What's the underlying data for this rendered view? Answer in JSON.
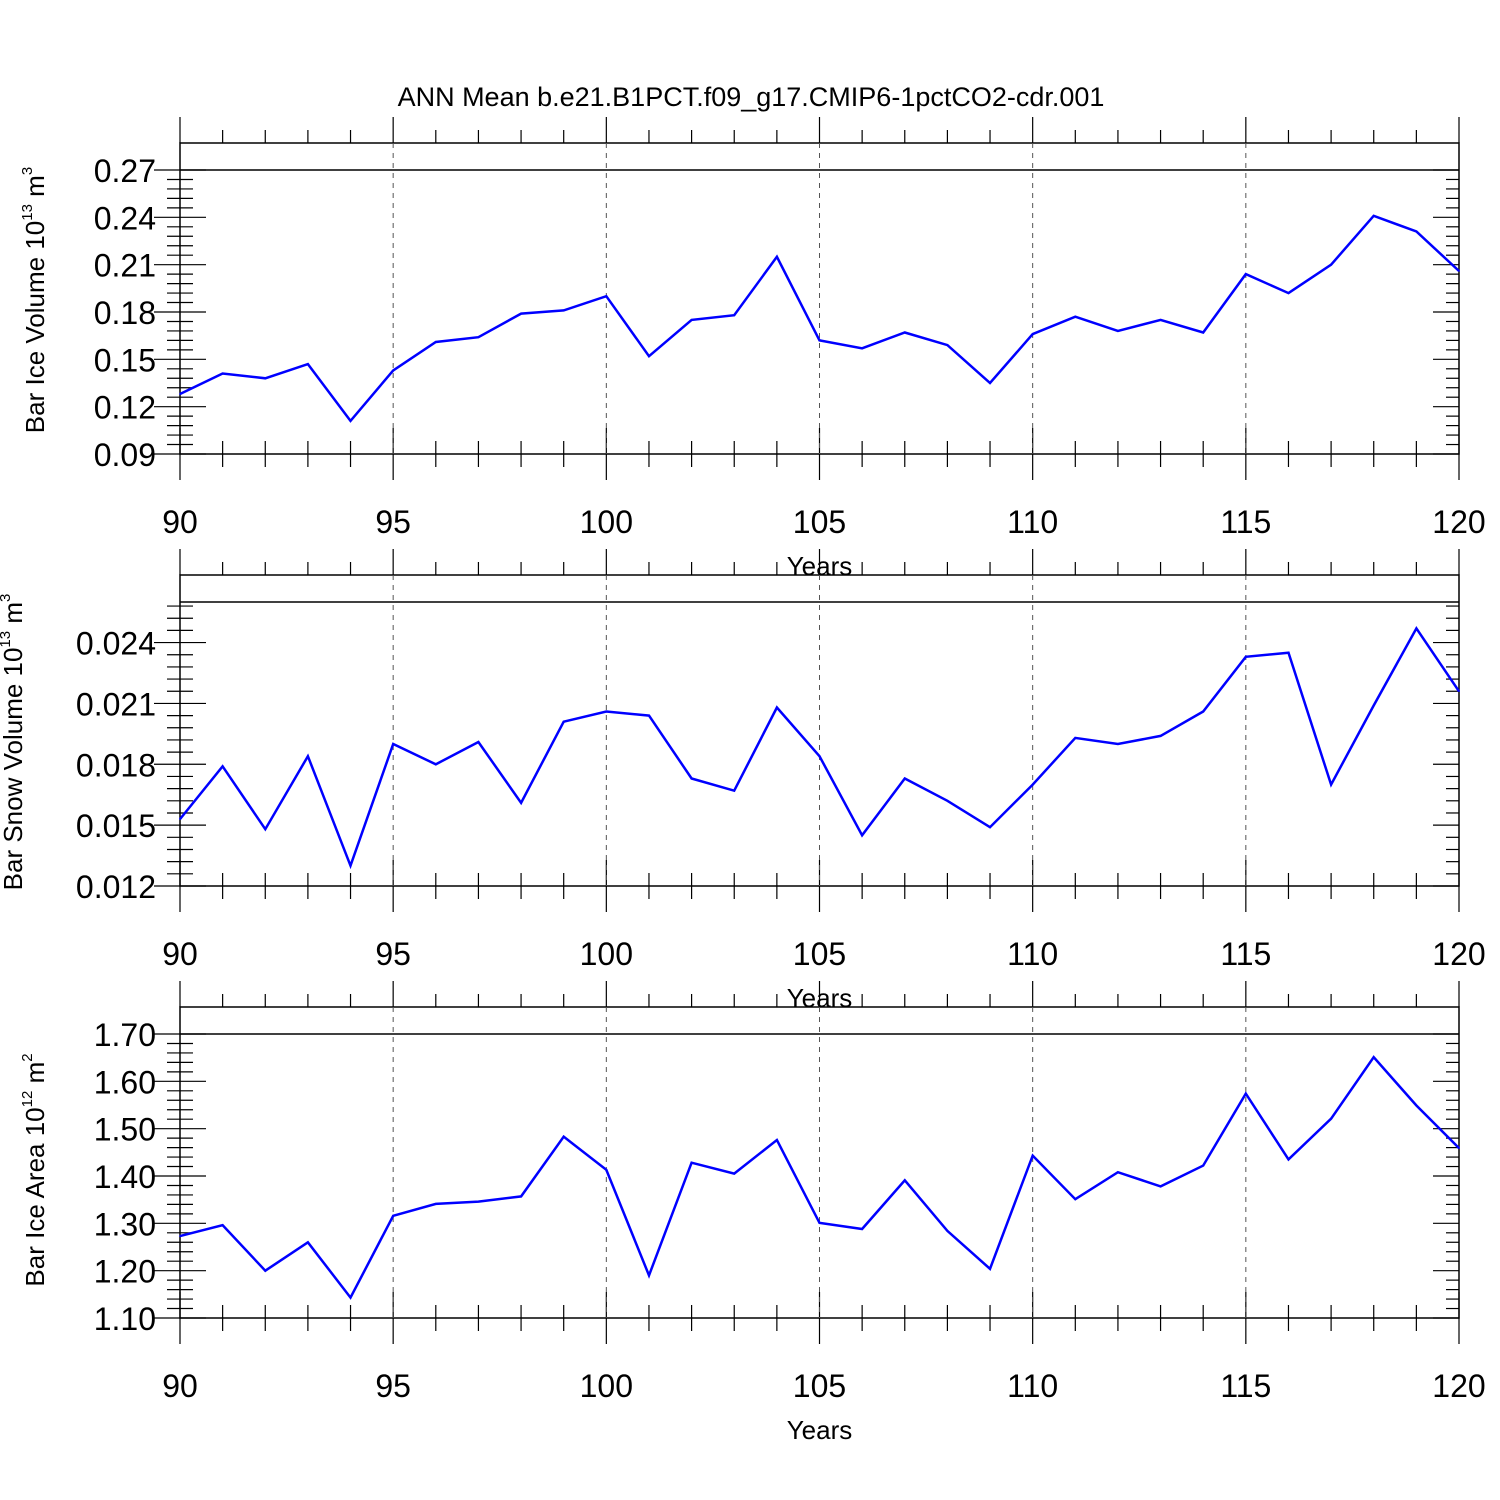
{
  "page": {
    "title": "ANN Mean b.e21.B1PCT.f09_g17.CMIP6-1pctCO2-cdr.001"
  },
  "colors": {
    "series_line": "#0000ff",
    "axis": "#000000",
    "grid": "#555555"
  },
  "chart_data": [
    {
      "type": "line",
      "xlabel": "Years",
      "ylabel": "Bar Ice Volume 10",
      "ylabel_exponent": "13",
      "ylabel_unit": " m",
      "ylabel_unit_exponent": "3",
      "x": [
        90,
        91,
        92,
        93,
        94,
        95,
        96,
        97,
        98,
        99,
        100,
        101,
        102,
        103,
        104,
        105,
        106,
        107,
        108,
        109,
        110,
        111,
        112,
        113,
        114,
        115,
        116,
        117,
        118,
        119,
        120
      ],
      "values": [
        0.128,
        0.141,
        0.138,
        0.147,
        0.111,
        0.143,
        0.161,
        0.164,
        0.179,
        0.181,
        0.19,
        0.152,
        0.175,
        0.178,
        0.215,
        0.162,
        0.157,
        0.167,
        0.159,
        0.135,
        0.166,
        0.177,
        0.168,
        0.175,
        0.167,
        0.204,
        0.192,
        0.21,
        0.241,
        0.231,
        0.206
      ],
      "xlim": [
        90,
        120
      ],
      "ylim": [
        0.09,
        0.27
      ],
      "xticks": [
        "90",
        "95",
        "100",
        "105",
        "110",
        "115",
        "120"
      ],
      "yticks": [
        "0.09",
        "0.12",
        "0.15",
        "0.18",
        "0.21",
        "0.24",
        "0.27"
      ],
      "grid": "vertical dashed at major x ticks"
    },
    {
      "type": "line",
      "xlabel": "Years",
      "ylabel": "Bar Snow Volume 10",
      "ylabel_exponent": "13",
      "ylabel_unit": " m",
      "ylabel_unit_exponent": "3",
      "x": [
        90,
        91,
        92,
        93,
        94,
        95,
        96,
        97,
        98,
        99,
        100,
        101,
        102,
        103,
        104,
        105,
        106,
        107,
        108,
        109,
        110,
        111,
        112,
        113,
        114,
        115,
        116,
        117,
        118,
        119,
        120
      ],
      "values": [
        0.0153,
        0.0179,
        0.0148,
        0.0184,
        0.013,
        0.019,
        0.018,
        0.0191,
        0.0161,
        0.0201,
        0.0206,
        0.0204,
        0.0173,
        0.0167,
        0.0208,
        0.0184,
        0.0145,
        0.0173,
        0.0162,
        0.0149,
        0.017,
        0.0193,
        0.019,
        0.0194,
        0.0206,
        0.0233,
        0.0235,
        0.017,
        0.0209,
        0.0247,
        0.0216
      ],
      "xlim": [
        90,
        120
      ],
      "ylim": [
        0.012,
        0.026
      ],
      "xticks": [
        "90",
        "95",
        "100",
        "105",
        "110",
        "115",
        "120"
      ],
      "yticks": [
        "0.012",
        "0.015",
        "0.018",
        "0.021",
        "0.024"
      ],
      "grid": "vertical dashed at major x ticks"
    },
    {
      "type": "line",
      "xlabel": "Years",
      "ylabel": "Bar Ice Area 10",
      "ylabel_exponent": "12",
      "ylabel_unit": " m",
      "ylabel_unit_exponent": "2",
      "x": [
        90,
        91,
        92,
        93,
        94,
        95,
        96,
        97,
        98,
        99,
        100,
        101,
        102,
        103,
        104,
        105,
        106,
        107,
        108,
        109,
        110,
        111,
        112,
        113,
        114,
        115,
        116,
        117,
        118,
        119,
        120
      ],
      "values": [
        1.273,
        1.296,
        1.2,
        1.26,
        1.143,
        1.316,
        1.341,
        1.346,
        1.357,
        1.483,
        1.413,
        1.19,
        1.428,
        1.405,
        1.476,
        1.301,
        1.288,
        1.391,
        1.284,
        1.204,
        1.443,
        1.351,
        1.408,
        1.378,
        1.422,
        1.574,
        1.435,
        1.521,
        1.651,
        1.549,
        1.459
      ],
      "xlim": [
        90,
        120
      ],
      "ylim": [
        1.1,
        1.7
      ],
      "xticks": [
        "90",
        "95",
        "100",
        "105",
        "110",
        "115",
        "120"
      ],
      "yticks": [
        "1.10",
        "1.20",
        "1.30",
        "1.40",
        "1.50",
        "1.60",
        "1.70"
      ],
      "grid": "vertical dashed at major x ticks"
    }
  ]
}
